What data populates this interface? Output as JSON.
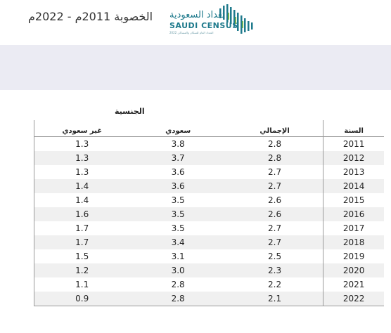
{
  "header": {
    "title": "الخصوبة 2011م - 2022م",
    "logo": {
      "arabic": "تعداد السعودية",
      "english": "SAUDI CENSUS",
      "tagline": "التعداد العام للسكان والمساكن 2022",
      "color": "#1f7a8c"
    }
  },
  "banner": {
    "color": "#ebebf3"
  },
  "table": {
    "group_label": "الجنسية",
    "columns": {
      "year": "السنة",
      "total": "الإجمالي",
      "saudi": "سعودي",
      "non_saudi": "غير سعودي"
    },
    "rows": [
      {
        "year": "2011",
        "total": "2.8",
        "saudi": "3.8",
        "non_saudi": "1.3"
      },
      {
        "year": "2012",
        "total": "2.8",
        "saudi": "3.7",
        "non_saudi": "1.3"
      },
      {
        "year": "2013",
        "total": "2.7",
        "saudi": "3.6",
        "non_saudi": "1.3"
      },
      {
        "year": "2014",
        "total": "2.7",
        "saudi": "3.6",
        "non_saudi": "1.4"
      },
      {
        "year": "2015",
        "total": "2.6",
        "saudi": "3.5",
        "non_saudi": "1.4"
      },
      {
        "year": "2016",
        "total": "2.6",
        "saudi": "3.5",
        "non_saudi": "1.6"
      },
      {
        "year": "2017",
        "total": "2.7",
        "saudi": "3.5",
        "non_saudi": "1.7"
      },
      {
        "year": "2018",
        "total": "2.7",
        "saudi": "3.4",
        "non_saudi": "1.7"
      },
      {
        "year": "2019",
        "total": "2.5",
        "saudi": "3.1",
        "non_saudi": "1.5"
      },
      {
        "year": "2020",
        "total": "2.3",
        "saudi": "3.0",
        "non_saudi": "1.2"
      },
      {
        "year": "2021",
        "total": "2.2",
        "saudi": "2.8",
        "non_saudi": "1.1"
      },
      {
        "year": "2022",
        "total": "2.1",
        "saudi": "2.8",
        "non_saudi": "0.9"
      }
    ]
  }
}
